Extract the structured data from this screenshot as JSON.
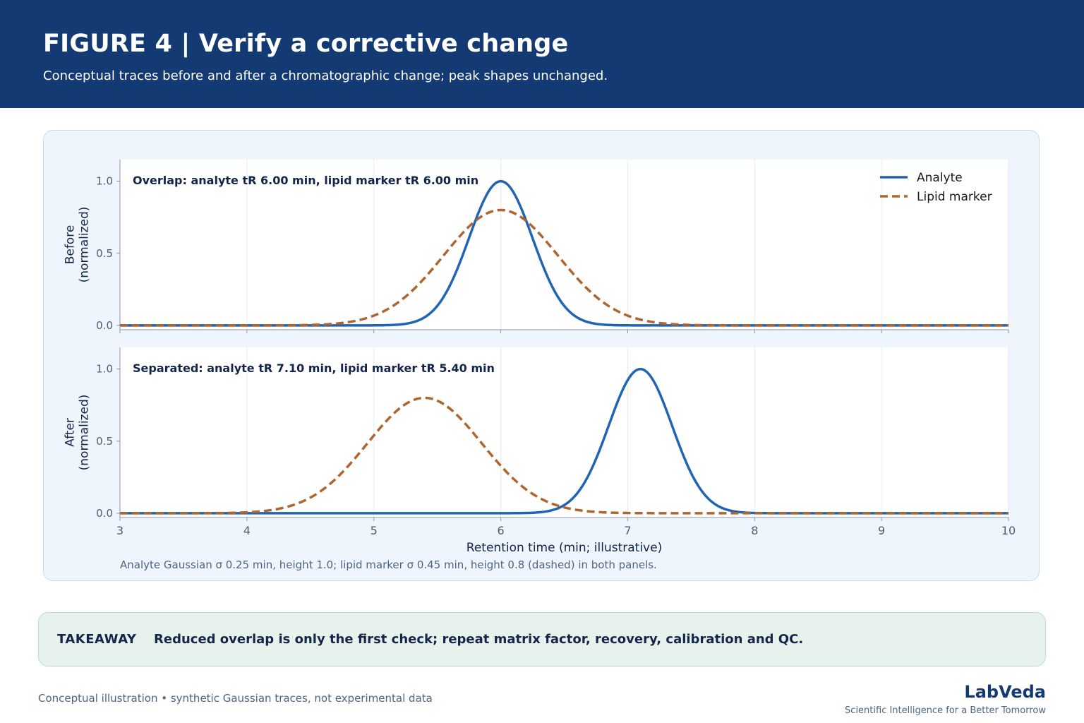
{
  "header": {
    "title": "FIGURE 4  |  Verify a corrective change",
    "subtitle": "Conceptual traces before and after a chromatographic change; peak shapes unchanged."
  },
  "colors": {
    "header_bg": "#143a73",
    "analyte": "#1f65b4",
    "lipid": "#b0642e",
    "panel_bg": "#eef5fd",
    "takeaway_bg": "#e8f2ec"
  },
  "chart_data": [
    {
      "type": "line",
      "panel": "before",
      "annotation": "Overlap: analyte tR 6.00 min, lipid marker tR 6.00 min",
      "ylabel": "Before\n(normalized)",
      "xlim": [
        3,
        10
      ],
      "ylim": [
        -0.03,
        1.15
      ],
      "yticks": [
        0.0,
        0.5,
        1.0
      ],
      "xticks": [
        3,
        4,
        5,
        6,
        7,
        8,
        9,
        10
      ],
      "grid": true,
      "legend_placement": "top-right",
      "series": [
        {
          "name": "Analyte",
          "style": "solid",
          "model": "gaussian",
          "center": 6.0,
          "sigma": 0.25,
          "height": 1.0
        },
        {
          "name": "Lipid marker",
          "style": "dashed",
          "model": "gaussian",
          "center": 6.0,
          "sigma": 0.45,
          "height": 0.8
        }
      ]
    },
    {
      "type": "line",
      "panel": "after",
      "annotation": "Separated: analyte tR 7.10 min, lipid marker tR 5.40 min",
      "ylabel": "After\n(normalized)",
      "xlabel": "Retention time (min; illustrative)",
      "xlim": [
        3,
        10
      ],
      "ylim": [
        -0.03,
        1.15
      ],
      "yticks": [
        0.0,
        0.5,
        1.0
      ],
      "xticks": [
        3,
        4,
        5,
        6,
        7,
        8,
        9,
        10
      ],
      "grid": true,
      "series": [
        {
          "name": "Analyte",
          "style": "solid",
          "model": "gaussian",
          "center": 7.1,
          "sigma": 0.25,
          "height": 1.0
        },
        {
          "name": "Lipid marker",
          "style": "dashed",
          "model": "gaussian",
          "center": 5.4,
          "sigma": 0.45,
          "height": 0.8
        }
      ]
    }
  ],
  "chart_caption": "Analyte Gaussian σ 0.25 min, height 1.0; lipid marker σ 0.45 min, height 0.8 (dashed) in both panels.",
  "takeaway": {
    "label": "TAKEAWAY",
    "text": "Reduced overlap is only the first check; repeat matrix factor, recovery, calibration and QC."
  },
  "footer": {
    "note": "Conceptual illustration • synthetic Gaussian traces, not experimental data",
    "brand": "LabVeda",
    "tagline": "Scientific Intelligence for a Better Tomorrow"
  }
}
